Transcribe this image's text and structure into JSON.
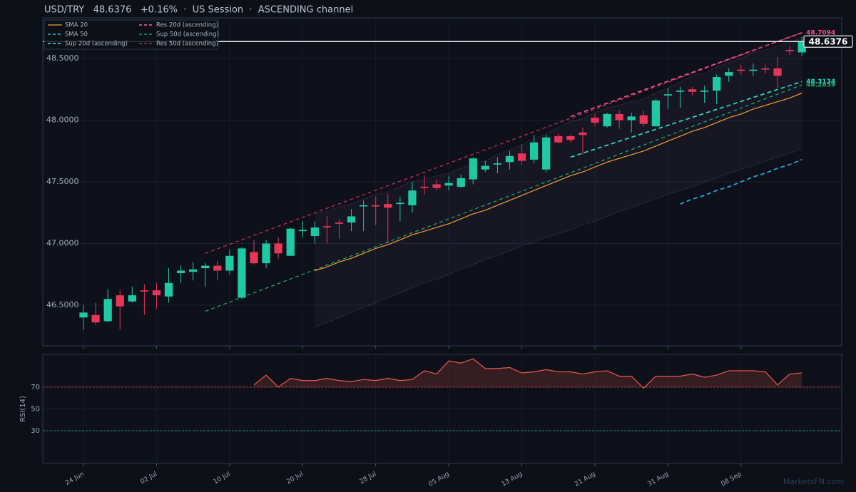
{
  "chart_data": [
    {
      "type": "candlestick",
      "title": "USD/TRY   48.6376   +0.16%  ·  US Session  ·  ASCENDING channel",
      "categories": [
        "24 Jun",
        null,
        null,
        null,
        null,
        null,
        "02 Jul",
        null,
        null,
        null,
        null,
        null,
        "10 Jul",
        null,
        null,
        null,
        null,
        null,
        "20 Jul",
        null,
        null,
        null,
        null,
        null,
        "28 Jul",
        null,
        null,
        null,
        null,
        null,
        "05 Aug",
        null,
        null,
        null,
        null,
        null,
        "13 Aug",
        null,
        null,
        null,
        null,
        null,
        "21 Aug",
        null,
        null,
        null,
        null,
        null,
        "31 Aug",
        null,
        null,
        null,
        null,
        null,
        "08 Sep",
        null,
        null,
        null,
        null,
        null
      ],
      "open": [
        46.4,
        46.42,
        46.37,
        46.58,
        46.53,
        46.62,
        46.62,
        46.57,
        46.76,
        46.77,
        46.8,
        46.82,
        46.78,
        46.56,
        46.93,
        46.84,
        47.0,
        46.9,
        47.1,
        47.06,
        47.14,
        47.17,
        47.17,
        47.3,
        47.31,
        47.32,
        47.32,
        47.31,
        47.46,
        47.48,
        47.47,
        47.46,
        47.52,
        47.6,
        47.64,
        47.66,
        47.73,
        47.68,
        47.6,
        47.87,
        47.87,
        47.9,
        48.02,
        47.95,
        48.05,
        48.0,
        48.04,
        47.95,
        48.2,
        48.23,
        48.25,
        48.23,
        48.24,
        48.36,
        48.41,
        48.4,
        48.42,
        48.42,
        48.57,
        48.55
      ],
      "high": [
        46.5,
        46.52,
        46.63,
        46.62,
        46.65,
        46.67,
        46.68,
        46.8,
        46.82,
        46.85,
        46.84,
        46.86,
        46.95,
        46.97,
        47.03,
        47.03,
        47.05,
        47.13,
        47.18,
        47.18,
        47.22,
        47.2,
        47.28,
        47.35,
        47.38,
        47.4,
        47.38,
        47.5,
        47.55,
        47.52,
        47.55,
        47.56,
        47.7,
        47.67,
        47.7,
        47.75,
        47.8,
        47.88,
        47.88,
        47.89,
        47.88,
        47.94,
        48.05,
        48.06,
        48.08,
        48.06,
        48.08,
        48.17,
        48.26,
        48.27,
        48.27,
        48.28,
        48.37,
        48.42,
        48.45,
        48.46,
        48.45,
        48.51,
        48.6,
        48.68
      ],
      "low": [
        46.3,
        46.34,
        46.36,
        46.3,
        46.52,
        46.42,
        46.47,
        46.52,
        46.68,
        46.7,
        46.65,
        46.7,
        46.75,
        46.55,
        46.83,
        46.8,
        46.88,
        46.9,
        47.05,
        47.0,
        47.0,
        47.04,
        47.1,
        47.1,
        47.15,
        47.0,
        47.18,
        47.25,
        47.4,
        47.43,
        47.43,
        47.45,
        47.48,
        47.58,
        47.57,
        47.6,
        47.64,
        47.65,
        47.58,
        47.81,
        47.82,
        47.72,
        47.95,
        47.94,
        47.93,
        47.9,
        47.95,
        47.95,
        48.09,
        48.1,
        48.2,
        48.14,
        48.13,
        48.31,
        48.37,
        48.36,
        48.38,
        48.25,
        48.53,
        48.52
      ],
      "close": [
        46.44,
        46.36,
        46.55,
        46.49,
        46.58,
        46.61,
        46.58,
        46.68,
        46.78,
        46.79,
        46.82,
        46.78,
        46.9,
        46.96,
        46.84,
        47.0,
        46.92,
        47.12,
        47.11,
        47.13,
        47.13,
        47.16,
        47.22,
        47.31,
        47.3,
        47.29,
        47.33,
        47.43,
        47.45,
        47.45,
        47.49,
        47.53,
        47.69,
        47.63,
        47.65,
        47.71,
        47.67,
        47.82,
        47.86,
        47.82,
        47.84,
        47.88,
        47.98,
        48.05,
        48.0,
        48.03,
        47.97,
        48.16,
        48.21,
        48.24,
        48.23,
        48.24,
        48.35,
        48.39,
        48.4,
        48.41,
        48.41,
        48.36,
        48.56,
        48.6376
      ],
      "up_color": "#1fc9a3",
      "down_color": "#e8365a",
      "series": [
        {
          "name": "SMA 20",
          "color": "#f0a030",
          "dash": false,
          "values": [
            null,
            null,
            null,
            null,
            null,
            null,
            null,
            null,
            null,
            null,
            null,
            null,
            null,
            null,
            null,
            null,
            null,
            null,
            null,
            46.78,
            46.81,
            46.85,
            46.88,
            46.92,
            46.96,
            46.99,
            47.03,
            47.07,
            47.1,
            47.13,
            47.16,
            47.2,
            47.24,
            47.27,
            47.31,
            47.35,
            47.39,
            47.43,
            47.47,
            47.51,
            47.55,
            47.58,
            47.62,
            47.66,
            47.69,
            47.72,
            47.75,
            47.79,
            47.83,
            47.87,
            47.91,
            47.94,
            47.98,
            48.02,
            48.05,
            48.09,
            48.12,
            48.15,
            48.18,
            48.22
          ]
        },
        {
          "name": "SMA 50",
          "color": "#2a9fd8",
          "dash": true,
          "bold": true,
          "values": [
            null,
            null,
            null,
            null,
            null,
            null,
            null,
            null,
            null,
            null,
            null,
            null,
            null,
            null,
            null,
            null,
            null,
            null,
            null,
            null,
            null,
            null,
            null,
            null,
            null,
            null,
            null,
            null,
            null,
            null,
            null,
            null,
            null,
            null,
            null,
            null,
            null,
            null,
            null,
            null,
            null,
            null,
            null,
            null,
            null,
            null,
            null,
            null,
            null,
            47.32,
            47.36,
            47.39,
            47.43,
            47.46,
            47.5,
            47.54,
            47.57,
            47.61,
            47.64,
            47.68
          ]
        },
        {
          "name": "Sup 20d (ascending)",
          "color": "#2dd4bf",
          "dash": true,
          "bold": true,
          "label_end": true,
          "x": [
            40,
            59
          ],
          "values": [
            47.7,
            48.3134
          ]
        },
        {
          "name": "Res 20d (ascending)",
          "color": "#f0508a",
          "dash": true,
          "bold": true,
          "label_end": true,
          "x": [
            40,
            59
          ],
          "values": [
            48.03,
            48.7094
          ]
        },
        {
          "name": "Sup 50d (ascending)",
          "color": "#20b070",
          "dash": true,
          "label_end": true,
          "x": [
            10,
            59
          ],
          "values": [
            46.45,
            48.2859
          ]
        },
        {
          "name": "Res 50d (ascending)",
          "color": "#d0305a",
          "dash": true,
          "x": [
            10,
            59
          ],
          "values": [
            46.92,
            48.71
          ]
        }
      ],
      "band": {
        "color": "#8a6aa8",
        "upper": [
          null,
          null,
          null,
          null,
          null,
          null,
          null,
          null,
          null,
          null,
          null,
          null,
          null,
          null,
          null,
          null,
          null,
          null,
          null,
          47.24,
          47.26,
          47.3,
          47.32,
          47.36,
          47.4,
          47.42,
          47.46,
          47.5,
          47.52,
          47.55,
          47.57,
          47.61,
          47.65,
          47.67,
          47.72,
          47.76,
          47.8,
          47.85,
          47.89,
          47.94,
          47.99,
          48.01,
          48.06,
          48.1,
          48.12,
          48.15,
          48.17,
          48.22,
          48.26,
          48.31,
          48.36,
          48.38,
          48.43,
          48.47,
          48.5,
          48.55,
          48.57,
          48.6,
          48.63,
          48.67
        ],
        "lower": [
          null,
          null,
          null,
          null,
          null,
          null,
          null,
          null,
          null,
          null,
          null,
          null,
          null,
          null,
          null,
          null,
          null,
          null,
          null,
          46.32,
          46.36,
          46.4,
          46.44,
          46.48,
          46.52,
          46.56,
          46.6,
          46.64,
          46.68,
          46.71,
          46.75,
          46.79,
          46.83,
          46.87,
          46.9,
          46.94,
          46.98,
          47.01,
          47.05,
          47.08,
          47.11,
          47.15,
          47.18,
          47.22,
          47.26,
          47.29,
          47.33,
          47.36,
          47.4,
          47.43,
          47.46,
          47.5,
          47.53,
          47.57,
          47.6,
          47.63,
          47.67,
          47.7,
          47.73,
          47.77
        ]
      },
      "last_price": 48.6376,
      "xlim": [
        -3.34,
        62.27
      ],
      "ylim": [
        46.17,
        48.83
      ],
      "yticks": [
        {
          "value": 46.5,
          "label": "46.5000"
        },
        {
          "value": 47,
          "label": "47.0000"
        },
        {
          "value": 47.5,
          "label": "47.5000"
        },
        {
          "value": 48,
          "label": "48.0000"
        },
        {
          "value": 48.5,
          "label": "48.5000"
        }
      ],
      "grid": true,
      "legend": "upper left",
      "watermark": "MarketsFN.com"
    },
    {
      "type": "line",
      "ylabel": "RSI(14)",
      "series": [
        {
          "name": "RSI(14)",
          "color": "#e85a4a",
          "values": [
            null,
            null,
            null,
            null,
            null,
            null,
            null,
            null,
            null,
            null,
            null,
            null,
            null,
            null,
            72,
            81,
            70,
            78,
            76,
            76,
            78,
            76,
            75,
            77,
            76,
            78,
            76,
            77,
            85,
            82,
            94,
            92,
            96,
            87,
            87,
            88,
            83,
            84,
            86,
            84,
            84,
            82,
            84,
            85,
            80,
            80,
            69,
            80,
            80,
            80,
            82,
            79,
            81,
            85,
            85,
            85,
            84,
            72,
            82,
            83
          ]
        }
      ],
      "overbought": {
        "value": 70,
        "color": "#d04040"
      },
      "oversold": {
        "value": 30,
        "color": "#20a080"
      },
      "ylim": [
        0,
        100
      ],
      "yticks": [
        30,
        50,
        70
      ]
    }
  ]
}
